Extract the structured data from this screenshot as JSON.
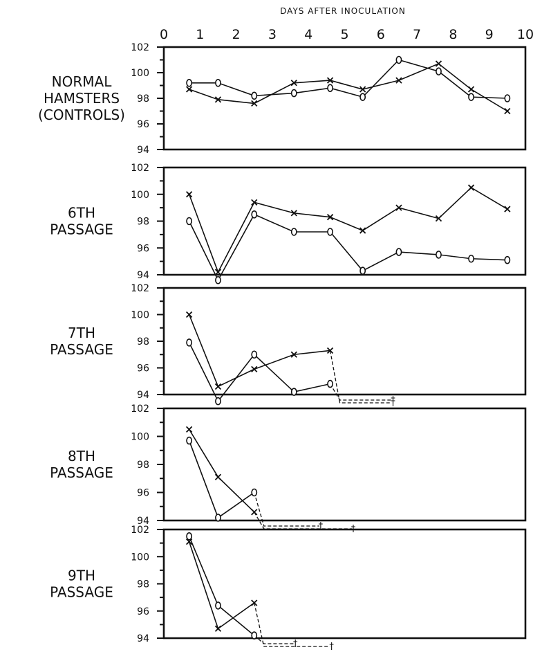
{
  "chart_data": {
    "type": "line",
    "title": "",
    "xlabel": "DAYS AFTER INOCULATION",
    "ylabel": "",
    "xlim": [
      0,
      10
    ],
    "ylim": [
      94,
      102
    ],
    "x_ticks": [
      "0",
      "1",
      "2",
      "3",
      "4",
      "5",
      "6",
      "7",
      "8",
      "9",
      "10"
    ],
    "y_ticks": [
      "102",
      "100",
      "98",
      "96",
      "94"
    ],
    "markers": [
      "o",
      "x"
    ],
    "death_symbol": "†",
    "panels": [
      {
        "label_lines": [
          "NORMAL",
          "HAMSTERS",
          "(CONTROLS)"
        ],
        "series": [
          {
            "marker": "o",
            "x": [
              0.7,
              1.5,
              2.5,
              3.6,
              4.6,
              5.5,
              6.5,
              7.6,
              8.5,
              9.5
            ],
            "values": [
              99.2,
              99.2,
              98.2,
              98.4,
              98.8,
              98.1,
              101.0,
              100.1,
              98.1,
              98.0
            ],
            "dashed_to": null
          },
          {
            "marker": "x",
            "x": [
              0.7,
              1.5,
              2.5,
              3.6,
              4.6,
              5.5,
              6.5,
              7.6,
              8.5,
              9.5
            ],
            "values": [
              98.7,
              97.9,
              97.6,
              99.2,
              99.4,
              98.7,
              99.4,
              100.7,
              98.7,
              97.0
            ],
            "dashed_to": null
          }
        ]
      },
      {
        "label_lines": [
          "6TH",
          "PASSAGE"
        ],
        "series": [
          {
            "marker": "o",
            "x": [
              0.7,
              1.5,
              2.5,
              3.6,
              4.6,
              5.5,
              6.5,
              7.6,
              8.5,
              9.5
            ],
            "values": [
              98.0,
              93.6,
              98.5,
              97.2,
              97.2,
              94.3,
              95.7,
              95.5,
              95.2,
              95.1
            ],
            "dashed_to": null
          },
          {
            "marker": "x",
            "x": [
              0.7,
              1.5,
              2.5,
              3.6,
              4.6,
              5.5,
              6.5,
              7.6,
              8.5,
              9.5
            ],
            "values": [
              100.0,
              94.2,
              99.4,
              98.6,
              98.3,
              97.3,
              99.0,
              98.2,
              100.5,
              98.9
            ],
            "dashed_to": null
          }
        ]
      },
      {
        "label_lines": [
          "7TH",
          "PASSAGE"
        ],
        "series": [
          {
            "marker": "o",
            "x": [
              0.7,
              1.5,
              2.5,
              3.6,
              4.6
            ],
            "values": [
              97.9,
              93.5,
              97.0,
              94.2,
              94.8
            ],
            "dashed_to": 6.3
          },
          {
            "marker": "x",
            "x": [
              0.7,
              1.5,
              2.5,
              3.6,
              4.6
            ],
            "values": [
              100.0,
              94.6,
              95.9,
              97.0,
              97.3
            ],
            "dashed_to": 6.3
          }
        ]
      },
      {
        "label_lines": [
          "8TH",
          "PASSAGE"
        ],
        "series": [
          {
            "marker": "o",
            "x": [
              0.7,
              1.5,
              2.5
            ],
            "values": [
              99.7,
              94.2,
              96.0
            ],
            "dashed_to": 4.3
          },
          {
            "marker": "x",
            "x": [
              0.7,
              1.5,
              2.5
            ],
            "values": [
              100.5,
              97.1,
              94.6
            ],
            "dashed_to": 5.2
          }
        ]
      },
      {
        "label_lines": [
          "9TH",
          "PASSAGE"
        ],
        "series": [
          {
            "marker": "o",
            "x": [
              0.7,
              1.5,
              2.5
            ],
            "values": [
              101.5,
              96.4,
              94.2
            ],
            "dashed_to": 3.6
          },
          {
            "marker": "x",
            "x": [
              0.7,
              1.5,
              2.5
            ],
            "values": [
              101.1,
              94.7,
              96.6
            ],
            "dashed_to": 4.6
          }
        ]
      }
    ]
  }
}
